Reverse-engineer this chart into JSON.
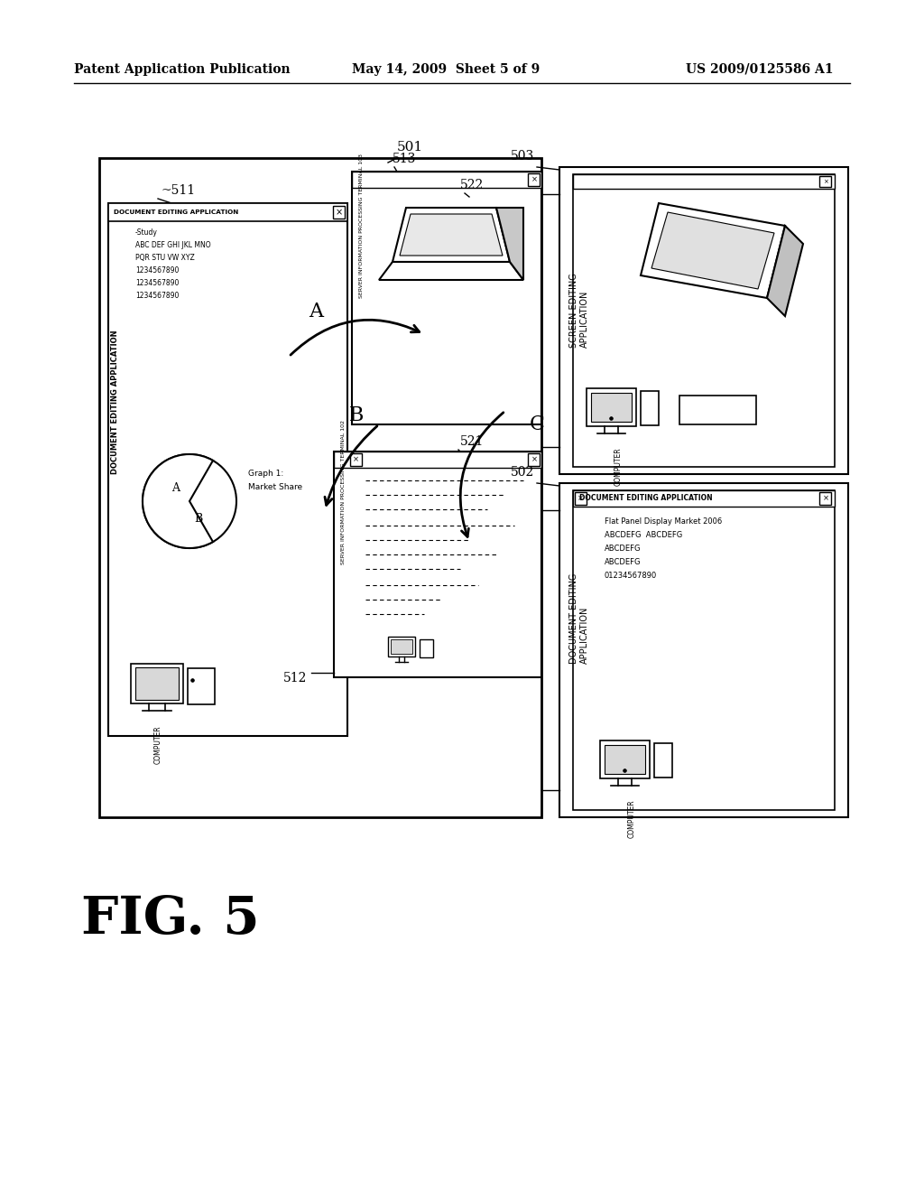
{
  "bg_color": "#ffffff",
  "header_left": "Patent Application Publication",
  "header_mid": "May 14, 2009  Sheet 5 of 9",
  "header_right": "US 2009/0125586 A1",
  "fig_label": "FIG. 5"
}
